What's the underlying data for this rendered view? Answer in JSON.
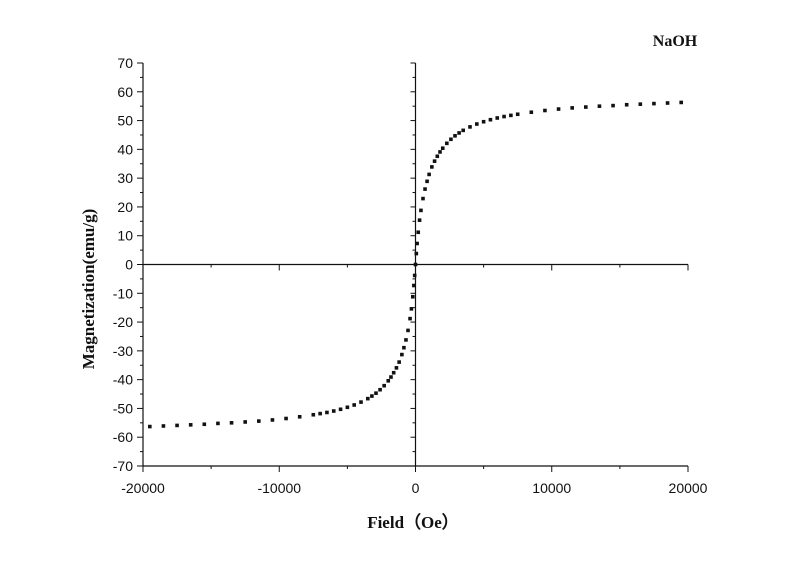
{
  "chart_data": {
    "type": "scatter",
    "title": "",
    "xlabel": "Field（Oe）",
    "ylabel": "Magnetization(emu/g)",
    "annotation": "NaOH",
    "xlim": [
      -20000,
      20000
    ],
    "ylim": [
      -70,
      70
    ],
    "x_ticks": [
      -20000,
      -10000,
      0,
      10000,
      20000
    ],
    "x_tick_labels": [
      "-20000",
      "-10000",
      "0",
      "10000",
      "20000"
    ],
    "y_ticks": [
      -70,
      -60,
      -50,
      -40,
      -30,
      -20,
      -10,
      0,
      10,
      20,
      30,
      40,
      50,
      60,
      70
    ],
    "y_tick_labels": [
      "-70",
      "-60",
      "-50",
      "-40",
      "-30",
      "-20",
      "-10",
      "0",
      "10",
      "20",
      "30",
      "40",
      "50",
      "60",
      "70"
    ],
    "grid": false,
    "legend": "none",
    "marker_color": "#111111",
    "series": [
      {
        "x": [
          -19500,
          -18500,
          -17500,
          -16500,
          -15500,
          -14500,
          -13500,
          -12500,
          -11500,
          -10500,
          -9500,
          -8500,
          -7500,
          -7000,
          -6500,
          -6000,
          -5500,
          -5000,
          -4500,
          -4000,
          -3500,
          -3200,
          -2900,
          -2600,
          -2300,
          -2000,
          -1800,
          -1600,
          -1400,
          -1200,
          -1000,
          -850,
          -700,
          -550,
          -400,
          -300,
          -200,
          -120,
          -60,
          0,
          60,
          120,
          200,
          300,
          400,
          550,
          700,
          850,
          1000,
          1200,
          1400,
          1600,
          1800,
          2000,
          2300,
          2600,
          2900,
          3200,
          3500,
          4000,
          4500,
          5000,
          5500,
          6000,
          6500,
          7000,
          7500,
          8500,
          9500,
          10500,
          11500,
          12500,
          13500,
          14500,
          15500,
          16500,
          17500,
          18500,
          19500
        ],
        "y": [
          -56.3,
          -56.1,
          -55.9,
          -55.7,
          -55.5,
          -55.2,
          -55.0,
          -54.7,
          -54.4,
          -54.0,
          -53.5,
          -52.9,
          -52.2,
          -51.8,
          -51.4,
          -50.9,
          -50.3,
          -49.6,
          -48.8,
          -47.8,
          -46.6,
          -45.7,
          -44.7,
          -43.5,
          -42.1,
          -40.4,
          -39.1,
          -37.6,
          -35.9,
          -33.9,
          -31.3,
          -28.9,
          -26.2,
          -22.9,
          -18.8,
          -15.4,
          -11.2,
          -7.3,
          -3.8,
          0,
          3.8,
          7.3,
          11.2,
          15.4,
          18.8,
          22.9,
          26.2,
          28.9,
          31.3,
          33.9,
          35.9,
          37.6,
          39.1,
          40.4,
          42.1,
          43.5,
          44.7,
          45.7,
          46.6,
          47.8,
          48.8,
          49.6,
          50.3,
          50.9,
          51.4,
          51.8,
          52.2,
          52.9,
          53.5,
          54.0,
          54.4,
          54.7,
          55.0,
          55.2,
          55.5,
          55.7,
          55.9,
          56.1,
          56.3
        ]
      }
    ]
  }
}
